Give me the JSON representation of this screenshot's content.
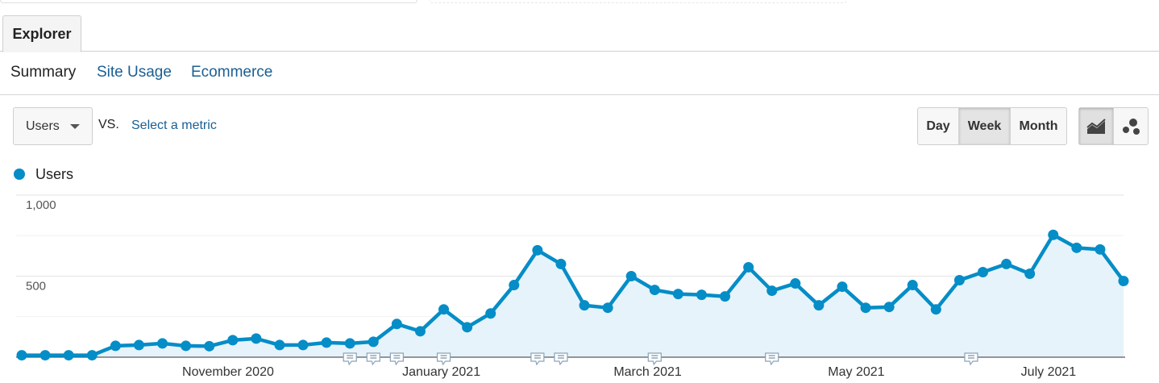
{
  "tabs": {
    "explorer": "Explorer"
  },
  "subnav": {
    "summary": "Summary",
    "site_usage": "Site Usage",
    "ecommerce": "Ecommerce"
  },
  "controls": {
    "metric": "Users",
    "vs": "VS.",
    "select_metric": "Select a metric",
    "period": {
      "day": "Day",
      "week": "Week",
      "month": "Month",
      "selected": "Week"
    },
    "chart_type_selected": "line-chart"
  },
  "colors": {
    "series": "#058dc7",
    "area": "#e6f3fa",
    "link": "#1a5f93"
  },
  "chart_data": {
    "type": "area",
    "series": [
      {
        "name": "Users",
        "values": [
          12,
          12,
          12,
          12,
          70,
          75,
          85,
          70,
          68,
          105,
          115,
          75,
          75,
          90,
          85,
          95,
          205,
          160,
          295,
          185,
          270,
          445,
          660,
          575,
          320,
          305,
          500,
          415,
          390,
          385,
          375,
          555,
          410,
          455,
          320,
          435,
          305,
          310,
          445,
          295,
          475,
          525,
          575,
          515,
          755,
          675,
          665,
          470
        ]
      }
    ],
    "ylim": [
      0,
      1000
    ],
    "yticks": [
      {
        "value": 1000,
        "label": "1,000"
      },
      {
        "value": 500,
        "label": "500"
      }
    ],
    "x_labels": [
      {
        "index": 8.8,
        "label": "November 2020"
      },
      {
        "index": 17.9,
        "label": "January 2021"
      },
      {
        "index": 26.7,
        "label": "March 2021"
      },
      {
        "index": 35.6,
        "label": "May 2021"
      },
      {
        "index": 43.8,
        "label": "July 2021"
      }
    ],
    "annotations": [
      14,
      15,
      16,
      18,
      22,
      23,
      27,
      32,
      40.5
    ],
    "grid": true
  }
}
